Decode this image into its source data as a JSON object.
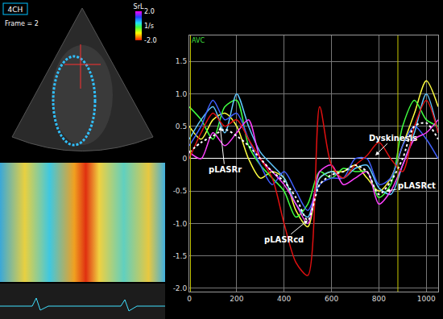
{
  "chart_data": {
    "type": "line",
    "x": [
      0,
      50,
      100,
      150,
      200,
      250,
      300,
      350,
      400,
      450,
      500,
      550,
      600,
      650,
      700,
      750,
      800,
      850,
      900,
      950,
      1000,
      1050
    ],
    "series": [
      {
        "color": "#ffff40",
        "values": [
          0.5,
          0.3,
          0.6,
          0.7,
          0.5,
          0.0,
          -0.3,
          -0.2,
          -0.3,
          -0.8,
          -1.05,
          -0.3,
          -0.2,
          -0.2,
          -0.1,
          -0.3,
          -0.5,
          -0.3,
          0.2,
          0.7,
          1.2,
          0.8
        ]
      },
      {
        "color": "#40ff40",
        "values": [
          0.8,
          0.6,
          0.3,
          0.8,
          0.9,
          0.2,
          -0.1,
          -0.3,
          -0.5,
          -0.9,
          -0.7,
          -0.2,
          -0.3,
          -0.15,
          -0.2,
          -0.2,
          -0.6,
          -0.4,
          0.5,
          0.9,
          0.6,
          0.5
        ]
      },
      {
        "color": "#60c8ff",
        "values": [
          0.3,
          0.6,
          0.8,
          0.4,
          1.0,
          0.5,
          0.1,
          -0.1,
          -0.3,
          -0.7,
          -0.9,
          -0.3,
          -0.2,
          -0.3,
          -0.15,
          -0.1,
          -0.45,
          -0.55,
          -0.1,
          0.4,
          1.0,
          0.4
        ]
      },
      {
        "color": "#4060ff",
        "values": [
          0.2,
          0.5,
          0.9,
          0.6,
          0.7,
          0.3,
          -0.1,
          -0.4,
          -0.2,
          -0.5,
          -0.8,
          -0.4,
          -0.3,
          -0.3,
          0.0,
          0.0,
          -0.4,
          -0.3,
          0.2,
          0.5,
          0.3,
          0.0
        ]
      },
      {
        "color": "#ff40ff",
        "values": [
          0.1,
          0.0,
          0.4,
          0.2,
          0.4,
          0.6,
          0.0,
          -0.2,
          -0.4,
          -0.7,
          -1.0,
          -0.2,
          -0.1,
          -0.4,
          -0.3,
          -0.2,
          -0.7,
          -0.5,
          -0.1,
          0.3,
          0.4,
          0.6
        ]
      },
      {
        "color": "#e01010",
        "values": [
          0.0,
          0.4,
          0.7,
          0.5,
          0.6,
          0.3,
          0.0,
          -0.3,
          -1.0,
          -1.6,
          -1.8,
          0.8,
          -0.1,
          -0.3,
          -0.1,
          0.05,
          0.25,
          0.0,
          -0.2,
          0.5,
          0.9,
          0.4
        ]
      },
      {
        "color": "#ffffff",
        "line_style": "dotted",
        "values": [
          0.1,
          0.25,
          0.35,
          0.45,
          0.35,
          0.2,
          0.0,
          -0.2,
          -0.35,
          -0.6,
          -0.95,
          -0.4,
          -0.25,
          -0.2,
          -0.1,
          -0.2,
          -0.55,
          -0.35,
          0.0,
          0.5,
          0.55,
          0.3
        ]
      }
    ],
    "xlim": [
      0,
      1050
    ],
    "xticks": [
      0,
      200,
      400,
      600,
      800,
      1000
    ],
    "ylim": [
      -2.05,
      1.9
    ],
    "yticks": [
      {
        "value": -2,
        "label": "-2.0"
      },
      {
        "value": -1.5,
        "label": "-1.5"
      },
      {
        "value": -1,
        "label": "-1.0"
      },
      {
        "value": -0.5,
        "label": "-0.5"
      },
      0,
      {
        "value": 0.5,
        "label": "0.5"
      },
      {
        "value": 1,
        "label": "1.0"
      },
      {
        "value": 1.5,
        "label": "1.5"
      }
    ],
    "grid": true,
    "vlines": [
      5,
      880
    ],
    "vline_label": "AVC",
    "annotations": [
      {
        "text": "pLASRr",
        "x": 130,
        "y": 0.5,
        "text_x": 150,
        "text_y": -0.17
      },
      {
        "text": "pLASRcd",
        "x": 500,
        "y": -0.95,
        "text_x": 400,
        "text_y": -1.25
      },
      {
        "text": "pLASRct",
        "x": 830,
        "y": -0.5,
        "text_x": 960,
        "text_y": -0.42
      },
      {
        "text": "Dyskinesis",
        "x": 785,
        "y": 0.05,
        "text_x": 860,
        "text_y": 0.32
      }
    ],
    "echo_view": {
      "label": "4CH",
      "frame": "Frame = 2",
      "colorbar": {
        "title": "SrL",
        "unit": "1/s",
        "range": [
          -2.0,
          2.0
        ],
        "ticks": [
          {
            "value": 2,
            "label": "2.0"
          },
          {
            "value": -2,
            "label": "-2.0"
          }
        ]
      }
    }
  }
}
